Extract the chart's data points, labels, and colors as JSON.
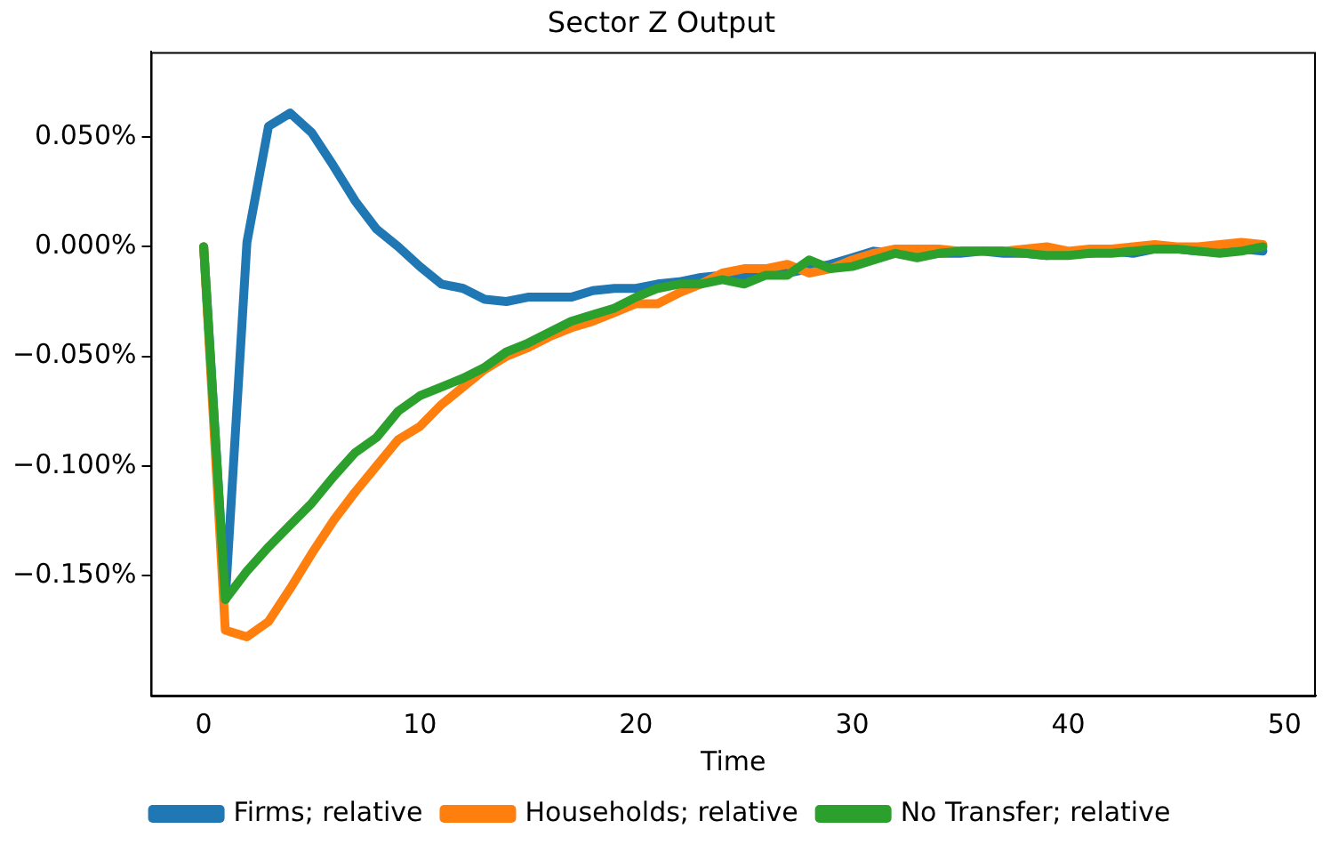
{
  "chart_data": {
    "type": "line",
    "title": "Sector Z Output",
    "xlabel": "Time",
    "x": [
      0,
      1,
      2,
      3,
      4,
      5,
      6,
      7,
      8,
      9,
      10,
      11,
      12,
      13,
      14,
      15,
      16,
      17,
      18,
      19,
      20,
      21,
      22,
      23,
      24,
      25,
      26,
      27,
      28,
      29,
      30,
      31,
      32,
      33,
      34,
      35,
      36,
      37,
      38,
      39,
      40,
      41,
      42,
      43,
      44,
      45,
      46,
      47,
      48,
      49
    ],
    "xlim": [
      -2.45,
      51.45
    ],
    "xticks": [
      0,
      10,
      20,
      30,
      40,
      50
    ],
    "ylim": [
      -0.2048,
      0.0889
    ],
    "yticks": [
      {
        "value": -0.15,
        "label": "−0.150%"
      },
      {
        "value": -0.1,
        "label": "−0.100%"
      },
      {
        "value": -0.05,
        "label": "−0.050%"
      },
      {
        "value": 0,
        "label": "0.000%"
      },
      {
        "value": 0.05,
        "label": "0.050%"
      }
    ],
    "grid": false,
    "legend": "bottom",
    "marker": "none",
    "line_style": "solid",
    "series": [
      {
        "name": "Firms; relative",
        "color": "#1f77b4",
        "values": [
          0,
          -0.161,
          0.002,
          0.055,
          0.061,
          0.052,
          0.037,
          0.021,
          0.008,
          0.0,
          -0.009,
          -0.017,
          -0.019,
          -0.024,
          -0.025,
          -0.023,
          -0.023,
          -0.023,
          -0.02,
          -0.019,
          -0.019,
          -0.017,
          -0.016,
          -0.014,
          -0.013,
          -0.014,
          -0.012,
          -0.012,
          -0.01,
          -0.008,
          -0.005,
          -0.002,
          -0.003,
          -0.004,
          -0.003,
          -0.003,
          -0.002,
          -0.003,
          -0.003,
          -0.004,
          -0.003,
          -0.003,
          -0.002,
          -0.003,
          -0.001,
          -0.001,
          -0.002,
          -0.002,
          -0.001,
          -0.002
        ]
      },
      {
        "name": "Households; relative",
        "color": "#ff7f0e",
        "values": [
          0,
          -0.175,
          -0.178,
          -0.171,
          -0.156,
          -0.14,
          -0.125,
          -0.112,
          -0.1,
          -0.088,
          -0.082,
          -0.072,
          -0.064,
          -0.056,
          -0.05,
          -0.046,
          -0.041,
          -0.037,
          -0.034,
          -0.03,
          -0.026,
          -0.026,
          -0.021,
          -0.017,
          -0.012,
          -0.01,
          -0.01,
          -0.008,
          -0.012,
          -0.01,
          -0.006,
          -0.003,
          -0.001,
          -0.001,
          -0.001,
          -0.002,
          -0.002,
          -0.002,
          -0.001,
          0.0,
          -0.002,
          -0.001,
          -0.001,
          0.0,
          0.001,
          0.0,
          0.0,
          0.001,
          0.002,
          0.001
        ]
      },
      {
        "name": "No Transfer; relative",
        "color": "#2ca02c",
        "values": [
          0,
          -0.161,
          -0.148,
          -0.137,
          -0.127,
          -0.117,
          -0.105,
          -0.094,
          -0.087,
          -0.075,
          -0.068,
          -0.064,
          -0.06,
          -0.055,
          -0.048,
          -0.044,
          -0.039,
          -0.034,
          -0.031,
          -0.028,
          -0.023,
          -0.019,
          -0.017,
          -0.017,
          -0.015,
          -0.017,
          -0.013,
          -0.013,
          -0.006,
          -0.01,
          -0.009,
          -0.006,
          -0.003,
          -0.005,
          -0.003,
          -0.002,
          -0.002,
          -0.002,
          -0.003,
          -0.004,
          -0.004,
          -0.003,
          -0.003,
          -0.002,
          -0.001,
          -0.001,
          -0.002,
          -0.003,
          -0.002,
          0.0
        ]
      }
    ]
  }
}
